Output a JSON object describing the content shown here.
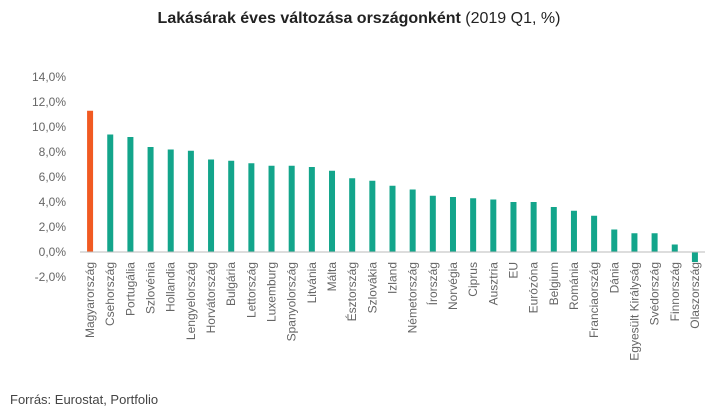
{
  "chart_data": {
    "type": "bar",
    "title": "Lakásárak éves változása országonként",
    "subtitle": "(2019 Q1, %)",
    "xlabel": "",
    "ylabel": "",
    "ylim": [
      -2,
      14
    ],
    "ytick_values": [
      -2,
      0,
      2,
      4,
      6,
      8,
      10,
      12,
      14
    ],
    "ytick_labels": [
      "-2,0%",
      "0,0%",
      "2,0%",
      "4,0%",
      "6,0%",
      "8,0%",
      "10,0%",
      "12,0%",
      "14,0%"
    ],
    "grid": false,
    "legend": "none",
    "categories": [
      "Magyarország",
      "Csehország",
      "Portugália",
      "Szlovénia",
      "Hollandia",
      "Lengyelország",
      "Horvátország",
      "Bulgária",
      "Lettország",
      "Luxemburg",
      "Spanyolország",
      "Litvánia",
      "Málta",
      "Észtország",
      "Szlovákia",
      "Izland",
      "Németország",
      "Írország",
      "Norvégia",
      "Ciprus",
      "Ausztria",
      "EU",
      "Eurózóna",
      "Belgium",
      "Románia",
      "Franciaország",
      "Dánia",
      "Egyesült Királyság",
      "Svédország",
      "Finnország",
      "Olaszország"
    ],
    "values": [
      11.3,
      9.4,
      9.2,
      8.4,
      8.2,
      8.1,
      7.4,
      7.3,
      7.1,
      6.9,
      6.9,
      6.8,
      6.5,
      5.9,
      5.7,
      5.3,
      5.0,
      4.5,
      4.4,
      4.3,
      4.2,
      4.0,
      4.0,
      3.6,
      3.3,
      2.9,
      1.8,
      1.5,
      1.5,
      0.6,
      -0.8
    ],
    "colors": {
      "highlight": "#f15a22",
      "default": "#13a58b",
      "highlight_category": "Magyarország"
    }
  },
  "source": "Forrás: Eurostat, Portfolio"
}
